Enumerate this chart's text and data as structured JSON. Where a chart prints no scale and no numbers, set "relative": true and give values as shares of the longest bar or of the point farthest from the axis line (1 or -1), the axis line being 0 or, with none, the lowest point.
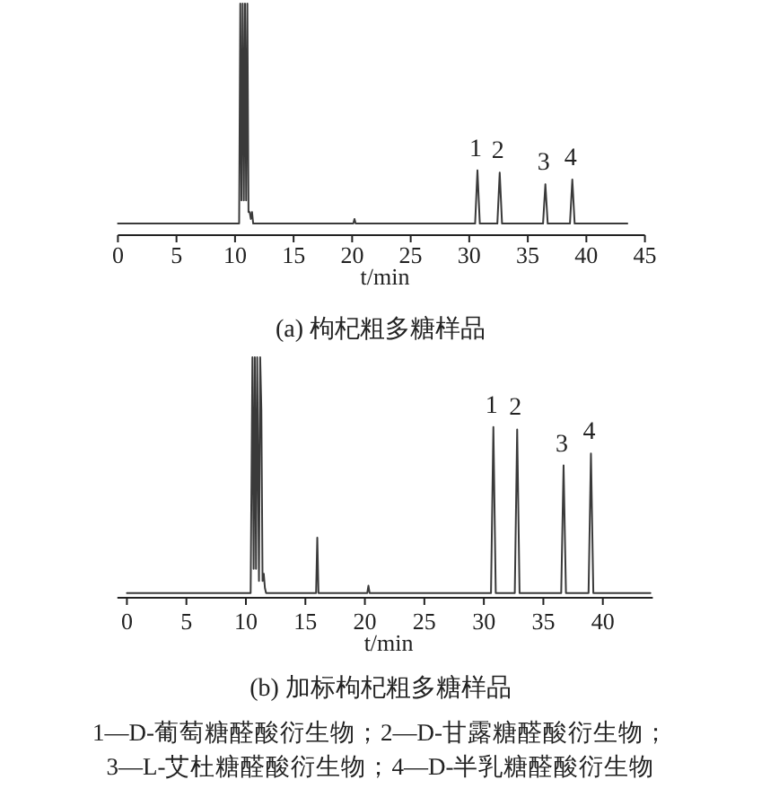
{
  "chart_data": [
    {
      "type": "line",
      "title": "(a) 枸杞粗多糖样品",
      "xlabel": "t/min",
      "relative": true,
      "xlim": [
        0,
        45
      ],
      "xticks": [
        0,
        5,
        10,
        15,
        20,
        25,
        30,
        35,
        40,
        45
      ],
      "series": [
        {
          "color": "#3a3a3a",
          "x": [
            0,
            10.35,
            10.45,
            10.55,
            10.65,
            10.75,
            10.85,
            10.95,
            11.05,
            11.15,
            11.25,
            11.35,
            11.45,
            11.55,
            20.1,
            20.2,
            20.3,
            30.5,
            30.7,
            30.9,
            32.4,
            32.6,
            32.8,
            36.3,
            36.5,
            36.7,
            38.6,
            38.8,
            39.0,
            43.5
          ],
          "values": [
            0.05,
            0.05,
            1,
            0.15,
            1,
            0.15,
            1,
            0.15,
            1,
            0.1,
            0.1,
            0.07,
            0.1,
            0.05,
            0.05,
            0.07,
            0.05,
            0.05,
            0.28,
            0.05,
            0.05,
            0.27,
            0.05,
            0.05,
            0.22,
            0.05,
            0.05,
            0.24,
            0.05,
            0.05
          ]
        }
      ],
      "annotations": [
        {
          "text": "1",
          "x": 30.7,
          "y": 0.28
        },
        {
          "text": "2",
          "x": 32.6,
          "y": 0.27
        },
        {
          "text": "3",
          "x": 36.5,
          "y": 0.22
        },
        {
          "text": "4",
          "x": 38.8,
          "y": 0.24
        }
      ]
    },
    {
      "type": "line",
      "title": "(b) 加标枸杞粗多糖样品",
      "xlabel": "t/min",
      "relative": true,
      "xlim": [
        -0.8,
        44.2
      ],
      "xticks": [
        0,
        5,
        10,
        15,
        20,
        25,
        30,
        35,
        40
      ],
      "series": [
        {
          "color": "#3a3a3a",
          "x": [
            0,
            10.4,
            10.55,
            10.65,
            10.75,
            10.85,
            10.95,
            11.1,
            11.2,
            11.3,
            11.4,
            11.5,
            11.6,
            11.7,
            15.9,
            16.0,
            16.1,
            20.2,
            20.3,
            20.4,
            30.6,
            30.8,
            31.0,
            32.6,
            32.8,
            33.0,
            36.5,
            36.7,
            36.9,
            38.8,
            39.0,
            39.2,
            44.0
          ],
          "values": [
            0.02,
            0.02,
            1,
            0.12,
            1,
            0.12,
            1,
            0.07,
            1,
            0.78,
            0.07,
            0.1,
            0.04,
            0.02,
            0.02,
            0.25,
            0.02,
            0.02,
            0.05,
            0.02,
            0.02,
            0.71,
            0.02,
            0.02,
            0.7,
            0.02,
            0.02,
            0.55,
            0.02,
            0.02,
            0.6,
            0.02,
            0.02
          ]
        }
      ],
      "annotations": [
        {
          "text": "1",
          "x": 30.8,
          "y": 0.71
        },
        {
          "text": "2",
          "x": 32.8,
          "y": 0.7
        },
        {
          "text": "3",
          "x": 36.7,
          "y": 0.55
        },
        {
          "text": "4",
          "x": 39.0,
          "y": 0.6
        },
        "1—D-葡萄糖醛酸衍生物；2—D-甘露糖醛酸衍生物；",
        "3—L-艾杜糖醛酸衍生物；4—D-半乳糖醛酸衍生物"
      ]
    }
  ]
}
